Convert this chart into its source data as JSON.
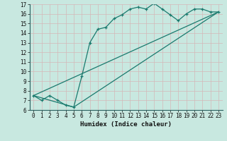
{
  "title": "",
  "xlabel": "Humidex (Indice chaleur)",
  "bg_color": "#c8e8e0",
  "grid_color": "#e8f8f4",
  "line_color": "#1a7a6e",
  "xlim": [
    -0.5,
    23.5
  ],
  "ylim": [
    6,
    17
  ],
  "xticks": [
    0,
    1,
    2,
    3,
    4,
    5,
    6,
    7,
    8,
    9,
    10,
    11,
    12,
    13,
    14,
    15,
    16,
    17,
    18,
    19,
    20,
    21,
    22,
    23
  ],
  "yticks": [
    6,
    7,
    8,
    9,
    10,
    11,
    12,
    13,
    14,
    15,
    16,
    17
  ],
  "curve1_x": [
    0,
    1,
    2,
    3,
    4,
    5,
    6,
    7,
    8,
    9,
    10,
    11,
    12,
    13,
    14,
    15,
    16,
    17,
    18,
    19,
    20,
    21,
    22,
    23
  ],
  "curve1_y": [
    7.5,
    7.0,
    7.5,
    7.0,
    6.5,
    6.3,
    9.5,
    13.0,
    14.4,
    14.6,
    15.5,
    15.9,
    16.5,
    16.7,
    16.5,
    17.1,
    16.5,
    15.9,
    15.3,
    16.0,
    16.5,
    16.5,
    16.2,
    16.2
  ],
  "curve2_x": [
    0,
    5,
    23
  ],
  "curve2_y": [
    7.5,
    6.3,
    16.2
  ],
  "curve3_x": [
    0,
    23
  ],
  "curve3_y": [
    7.5,
    16.2
  ],
  "tick_fontsize": 5.5,
  "xlabel_fontsize": 6.5
}
